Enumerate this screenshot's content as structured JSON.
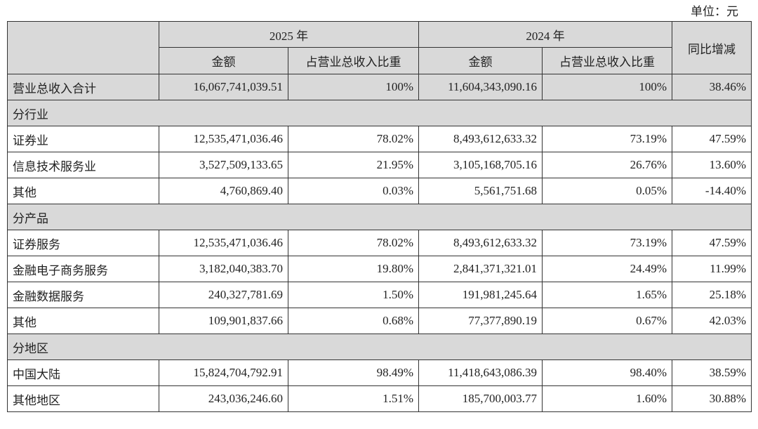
{
  "unit": "单位：元",
  "header": {
    "year_a": "2025 年",
    "year_b": "2024 年",
    "amount": "金额",
    "ratio": "占营业总收入比重",
    "yoy": "同比增减"
  },
  "total": [
    "营业总收入合计",
    "16,067,741,039.51",
    "100%",
    "11,604,343,090.16",
    "100%",
    "38.46%"
  ],
  "groups": [
    {
      "title": "分行业",
      "rows": [
        [
          "证券业",
          "12,535,471,036.46",
          "78.02%",
          "8,493,612,633.32",
          "73.19%",
          "47.59%"
        ],
        [
          "信息技术服务业",
          "3,527,509,133.65",
          "21.95%",
          "3,105,168,705.16",
          "26.76%",
          "13.60%"
        ],
        [
          "其他",
          "4,760,869.40",
          "0.03%",
          "5,561,751.68",
          "0.05%",
          "-14.40%"
        ]
      ]
    },
    {
      "title": "分产品",
      "rows": [
        [
          "证券服务",
          "12,535,471,036.46",
          "78.02%",
          "8,493,612,633.32",
          "73.19%",
          "47.59%"
        ],
        [
          "金融电子商务服务",
          "3,182,040,383.70",
          "19.80%",
          "2,841,371,321.01",
          "24.49%",
          "11.99%"
        ],
        [
          "金融数据服务",
          "240,327,781.69",
          "1.50%",
          "191,981,245.64",
          "1.65%",
          "25.18%"
        ],
        [
          "其他",
          "109,901,837.66",
          "0.68%",
          "77,377,890.19",
          "0.67%",
          "42.03%"
        ]
      ]
    },
    {
      "title": "分地区",
      "rows": [
        [
          "中国大陆",
          "15,824,704,792.91",
          "98.49%",
          "11,418,643,086.39",
          "98.40%",
          "38.59%"
        ],
        [
          "其他地区",
          "243,036,246.60",
          "1.51%",
          "185,700,003.77",
          "1.60%",
          "30.88%"
        ]
      ]
    }
  ]
}
